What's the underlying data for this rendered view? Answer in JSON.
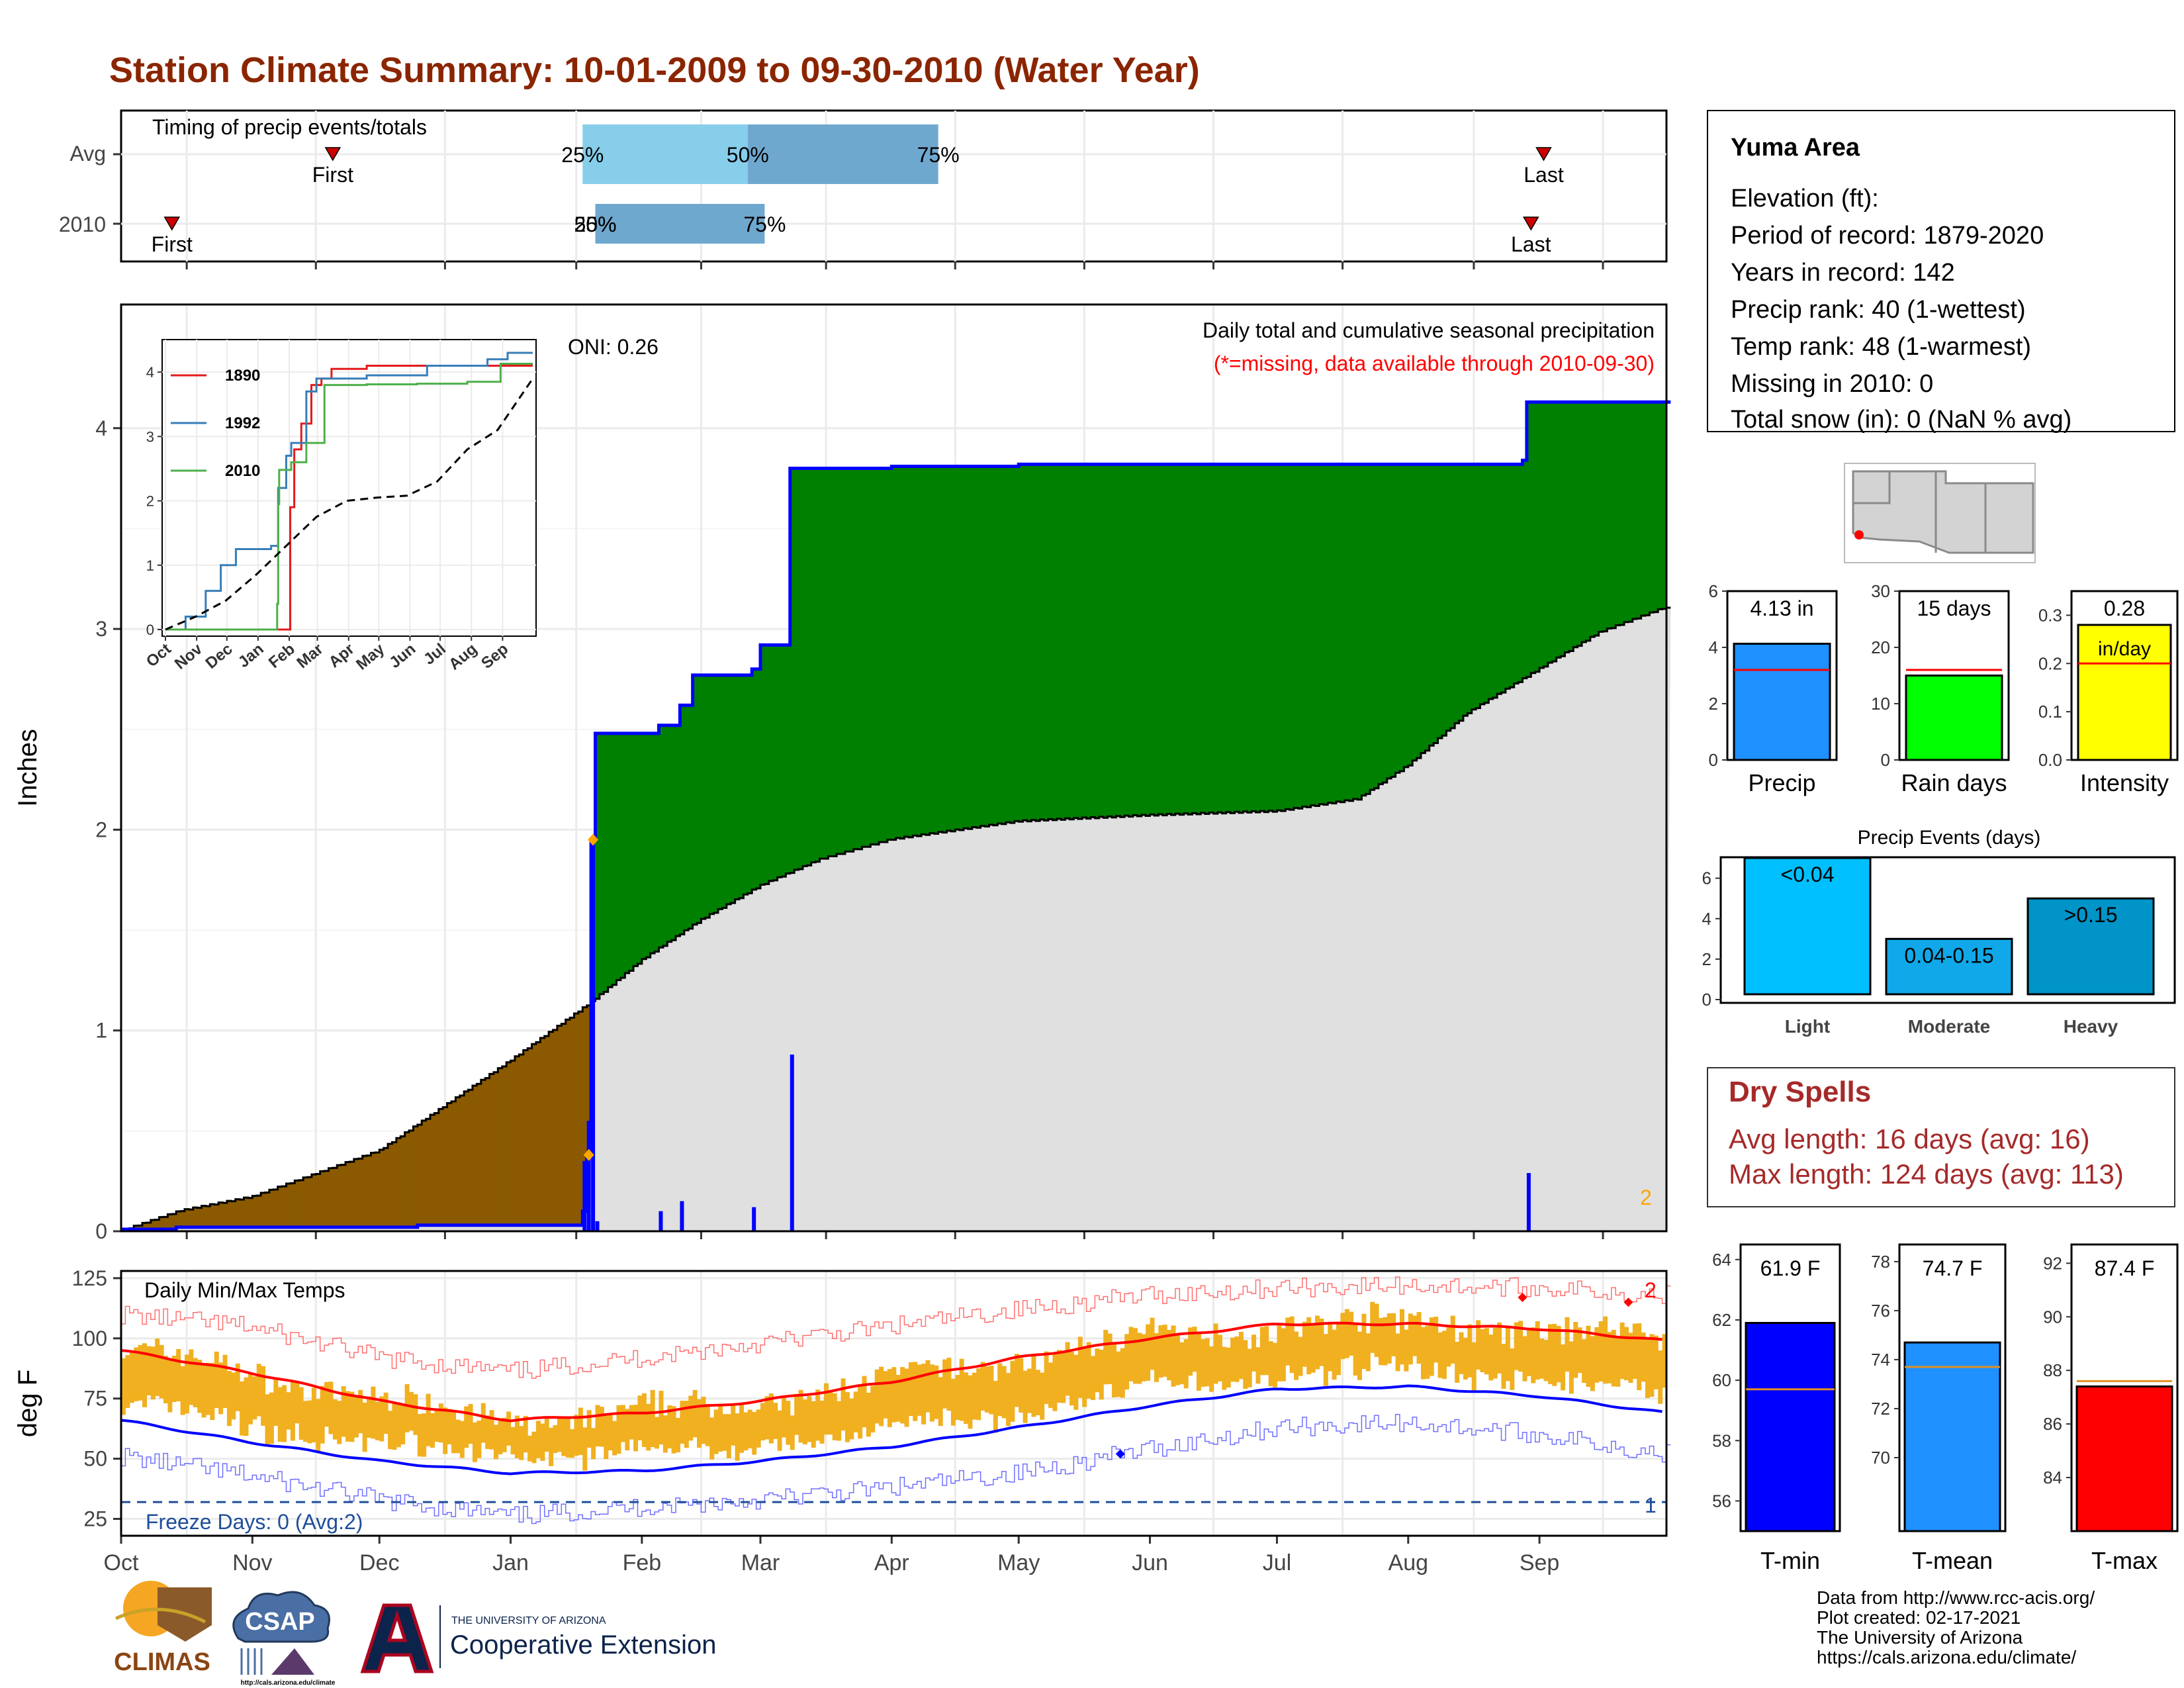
{
  "title": "Station Climate Summary: 10-01-2009 to 09-30-2010 (Water Year)",
  "months": [
    "Oct",
    "Nov",
    "Dec",
    "Jan",
    "Feb",
    "Mar",
    "Apr",
    "May",
    "Jun",
    "Jul",
    "Aug",
    "Sep"
  ],
  "timing": {
    "title": "Timing of precip events/totals",
    "row_labels": [
      "Avg",
      "2010"
    ],
    "first_label": "First",
    "last_label": "Last",
    "avg": {
      "first": "Nov 20",
      "p25": "Jan 18",
      "p50": "Feb 26",
      "p75": "Apr 12",
      "last": "Sep 2"
    },
    "y2010": {
      "first": "Oct 13",
      "p25": "Jan 21",
      "p50": "Jan 21",
      "p75": "Mar 2",
      "last": "Aug 30"
    },
    "pct_labels": [
      "25%",
      "50%",
      "75%"
    ],
    "colors": {
      "p25_p50": "#87ceeb",
      "p50_p75": "#6fa8cf",
      "marker": "#cc0000"
    }
  },
  "precip_panel": {
    "ylabel": "Inches",
    "header": "Daily total and cumulative seasonal precipitation",
    "missing_note": "(*=missing, data available through 2010-09-30)",
    "oni": "ONI: 0.26",
    "missing_count": "2",
    "colors": {
      "above_avg": "#008000",
      "below_avg": "#8b5a00",
      "avg_fill": "#e0e0e0",
      "obs_line": "#0000ff",
      "bars": "#0000ff"
    }
  },
  "inset": {
    "series": [
      {
        "name": "1890",
        "color": "#e41a1c"
      },
      {
        "name": "1992",
        "color": "#377eb8"
      },
      {
        "name": "2010",
        "color": "#4daf4a"
      }
    ],
    "months": [
      "Oct",
      "Nov",
      "Dec",
      "Jan",
      "Feb",
      "Mar",
      "Apr",
      "May",
      "Jun",
      "Jul",
      "Aug",
      "Sep"
    ]
  },
  "temp_panel": {
    "title": "Daily Min/Max Temps",
    "ylabel": "deg F",
    "freeze_label": "Freeze Days: 0 (Avg:2)",
    "count_max": "2",
    "count_min": "1",
    "colors": {
      "range": "#f0b020",
      "avg_max": "#ff0000",
      "avg_min": "#0000ff",
      "rec_max": "#ff7070",
      "rec_min": "#7070ff",
      "freeze": "#1f4e9a"
    }
  },
  "station": {
    "name": "Yuma Area",
    "lines": [
      "Elevation (ft):",
      "Period of record: 1879-2020",
      "Years in record: 142",
      "Precip rank: 40 (1-wettest)",
      "Temp rank: 48 (1-warmest)",
      "Missing in 2010: 0",
      "Total snow (in): 0 (NaN % avg)"
    ]
  },
  "summary_bars": [
    {
      "label": "Precip",
      "value_label": "4.13 in",
      "value": 4.13,
      "avg": 3.2,
      "ymax": 6,
      "ticks": [
        "0",
        "2",
        "4",
        "6"
      ],
      "tick_values": [
        0,
        2,
        4,
        6
      ],
      "color": "#1e90ff"
    },
    {
      "label": "Rain days",
      "value_label": "15 days",
      "value": 15,
      "avg": 16,
      "ymax": 30,
      "ticks": [
        "0",
        "10",
        "20",
        "30"
      ],
      "tick_values": [
        0,
        10,
        20,
        30
      ],
      "color": "#00ff00"
    },
    {
      "label": "Intensity",
      "value_label": "0.28",
      "value_label2": "in/day",
      "value": 0.28,
      "avg": 0.2,
      "ymax": 0.35,
      "ticks": [
        "0.0",
        "0.1",
        "0.2",
        "0.3"
      ],
      "tick_values": [
        0,
        0.1,
        0.2,
        0.3
      ],
      "color": "#ffff00"
    }
  ],
  "events": {
    "title": "Precip Events (days)",
    "ticks": [
      "0",
      "2",
      "4",
      "6"
    ],
    "bars": [
      {
        "label": "Light",
        "value_label": "<0.04",
        "value": 7,
        "color": "#00bfff"
      },
      {
        "label": "Moderate",
        "value_label": "0.04-0.15",
        "value": 3,
        "color": "#10a8e8"
      },
      {
        "label": "Heavy",
        "value_label": ">0.15",
        "value": 5,
        "color": "#0094c8"
      }
    ]
  },
  "dry_spells": {
    "title": "Dry Spells",
    "avg_length": "Avg length: 16 days (avg: 16)",
    "max_length": "Max length: 124 days (avg: 113)"
  },
  "temp_bars": [
    {
      "label": "T-min",
      "value_label": "61.9 F",
      "value": 61.9,
      "avg": 59.7,
      "ymin": 55,
      "ymax": 64.5,
      "ticks": [
        "56",
        "58",
        "60",
        "62",
        "64"
      ],
      "tick_values": [
        56,
        58,
        60,
        62,
        64
      ],
      "color": "#0000ff"
    },
    {
      "label": "T-mean",
      "value_label": "74.7 F",
      "value": 74.7,
      "avg": 73.7,
      "ymin": 67,
      "ymax": 78.7,
      "ticks": [
        "70",
        "72",
        "74",
        "76",
        "78"
      ],
      "tick_values": [
        70,
        72,
        74,
        76,
        78
      ],
      "color": "#1e90ff"
    },
    {
      "label": "T-max",
      "value_label": "87.4 F",
      "value": 87.4,
      "avg": 87.6,
      "ymin": 82,
      "ymax": 92.7,
      "ticks": [
        "84",
        "86",
        "88",
        "90",
        "92"
      ],
      "tick_values": [
        84,
        86,
        88,
        90,
        92
      ],
      "color": "#ff0000"
    }
  ],
  "logos": {
    "climas": "CLIMAS",
    "csap": "CSAP",
    "csap_url": "http://cals.arizona.edu/climate",
    "ua_small": "THE UNIVERSITY OF ARIZONA",
    "ua_big": "Cooperative Extension"
  },
  "credits": [
    "Data from http://www.rcc-acis.org/",
    "Plot created: 02-17-2021",
    "The University of Arizona",
    "https://cals.arizona.edu/climate/"
  ],
  "chart_data": [
    {
      "type": "area",
      "title": "Daily total and cumulative seasonal precipitation",
      "ylabel": "Inches",
      "ylim": [
        0,
        4.55
      ],
      "x_range": [
        "2009-10-01",
        "2010-09-30"
      ],
      "cumulative_2010": [
        {
          "x": "2009-10-01",
          "y": 0.01
        },
        {
          "x": "2009-10-14",
          "y": 0.02
        },
        {
          "x": "2009-12-10",
          "y": 0.03
        },
        {
          "x": "2010-01-18",
          "y": 0.1
        },
        {
          "x": "2010-01-19",
          "y": 0.38
        },
        {
          "x": "2010-01-20",
          "y": 1.95
        },
        {
          "x": "2010-01-21",
          "y": 2.48
        },
        {
          "x": "2010-02-05",
          "y": 2.52
        },
        {
          "x": "2010-02-10",
          "y": 2.62
        },
        {
          "x": "2010-02-13",
          "y": 2.77
        },
        {
          "x": "2010-02-27",
          "y": 2.8
        },
        {
          "x": "2010-03-01",
          "y": 2.92
        },
        {
          "x": "2010-03-08",
          "y": 3.8
        },
        {
          "x": "2010-04-01",
          "y": 3.81
        },
        {
          "x": "2010-05-01",
          "y": 3.82
        },
        {
          "x": "2010-08-28",
          "y": 3.84
        },
        {
          "x": "2010-08-29",
          "y": 4.13
        },
        {
          "x": "2010-09-30",
          "y": 4.13
        }
      ],
      "cumulative_avg": [
        {
          "x": "2009-10-01",
          "y": 0.0
        },
        {
          "x": "2009-10-15",
          "y": 0.1
        },
        {
          "x": "2009-11-01",
          "y": 0.17
        },
        {
          "x": "2009-12-01",
          "y": 0.4
        },
        {
          "x": "2010-01-01",
          "y": 0.85
        },
        {
          "x": "2010-01-20",
          "y": 1.14
        },
        {
          "x": "2010-02-01",
          "y": 1.35
        },
        {
          "x": "2010-02-15",
          "y": 1.55
        },
        {
          "x": "2010-03-01",
          "y": 1.72
        },
        {
          "x": "2010-03-15",
          "y": 1.85
        },
        {
          "x": "2010-04-01",
          "y": 1.95
        },
        {
          "x": "2010-05-01",
          "y": 2.04
        },
        {
          "x": "2010-06-01",
          "y": 2.07
        },
        {
          "x": "2010-07-01",
          "y": 2.09
        },
        {
          "x": "2010-07-20",
          "y": 2.15
        },
        {
          "x": "2010-08-01",
          "y": 2.32
        },
        {
          "x": "2010-08-15",
          "y": 2.58
        },
        {
          "x": "2010-09-01",
          "y": 2.8
        },
        {
          "x": "2010-09-15",
          "y": 2.98
        },
        {
          "x": "2010-09-30",
          "y": 3.1
        }
      ],
      "daily_bars": [
        {
          "x": "2010-01-18",
          "y": 0.35
        },
        {
          "x": "2010-01-19",
          "y": 0.55
        },
        {
          "x": "2010-01-20",
          "y": 1.95
        },
        {
          "x": "2010-01-21",
          "y": 0.05
        },
        {
          "x": "2010-02-05",
          "y": 0.1
        },
        {
          "x": "2010-02-10",
          "y": 0.15
        },
        {
          "x": "2010-02-27",
          "y": 0.12
        },
        {
          "x": "2010-03-08",
          "y": 0.88
        },
        {
          "x": "2010-08-29",
          "y": 0.29
        }
      ]
    },
    {
      "type": "line",
      "title": "",
      "ylim": [
        0,
        4.3
      ],
      "yticks": [
        0,
        1,
        2,
        3,
        4
      ],
      "series": [
        {
          "name": "1890",
          "values": [
            [
              0,
              0
            ],
            [
              120,
              0
            ],
            [
              124,
              1.9
            ],
            [
              128,
              2.8
            ],
            [
              135,
              3.2
            ],
            [
              145,
              3.8
            ],
            [
              155,
              3.9
            ],
            [
              165,
              4.05
            ],
            [
              200,
              4.1
            ],
            [
              300,
              4.1
            ],
            [
              365,
              4.1
            ]
          ]
        },
        {
          "name": "1992",
          "values": [
            [
              0,
              0
            ],
            [
              20,
              0.2
            ],
            [
              40,
              0.6
            ],
            [
              55,
              1.0
            ],
            [
              70,
              1.25
            ],
            [
              105,
              1.3
            ],
            [
              112,
              2.2
            ],
            [
              120,
              2.7
            ],
            [
              125,
              2.9
            ],
            [
              140,
              3.7
            ],
            [
              150,
              3.9
            ],
            [
              200,
              3.95
            ],
            [
              260,
              4.1
            ],
            [
              320,
              4.2
            ],
            [
              340,
              4.3
            ],
            [
              365,
              4.3
            ]
          ]
        },
        {
          "name": "2010",
          "values": [
            [
              0,
              0
            ],
            [
              110,
              0
            ],
            [
              111,
              0.4
            ],
            [
              112,
              1.95
            ],
            [
              113,
              2.48
            ],
            [
              125,
              2.6
            ],
            [
              140,
              2.9
            ],
            [
              158,
              3.8
            ],
            [
              200,
              3.81
            ],
            [
              250,
              3.82
            ],
            [
              300,
              3.85
            ],
            [
              332,
              3.85
            ],
            [
              333,
              4.13
            ],
            [
              365,
              4.13
            ]
          ]
        },
        {
          "name": "avg",
          "values": [
            [
              0,
              0
            ],
            [
              30,
              0.2
            ],
            [
              60,
              0.45
            ],
            [
              90,
              0.85
            ],
            [
              120,
              1.3
            ],
            [
              150,
              1.75
            ],
            [
              180,
              2.0
            ],
            [
              210,
              2.05
            ],
            [
              240,
              2.08
            ],
            [
              270,
              2.3
            ],
            [
              300,
              2.8
            ],
            [
              330,
              3.1
            ],
            [
              365,
              3.9
            ]
          ]
        }
      ]
    },
    {
      "type": "line",
      "title": "Daily Min/Max Temps",
      "ylabel": "deg F",
      "ylim": [
        18,
        128
      ],
      "yticks": [
        25,
        50,
        75,
        100,
        125
      ],
      "avg_max": [
        [
          0,
          95
        ],
        [
          30,
          86
        ],
        [
          61,
          74
        ],
        [
          92,
          66
        ],
        [
          123,
          69
        ],
        [
          151,
          74
        ],
        [
          182,
          82
        ],
        [
          212,
          92
        ],
        [
          243,
          100
        ],
        [
          273,
          106
        ],
        [
          304,
          106
        ],
        [
          335,
          104
        ],
        [
          365,
          99
        ]
      ],
      "avg_min": [
        [
          0,
          66
        ],
        [
          30,
          57
        ],
        [
          61,
          49
        ],
        [
          92,
          44
        ],
        [
          123,
          45
        ],
        [
          151,
          49
        ],
        [
          182,
          55
        ],
        [
          212,
          63
        ],
        [
          243,
          72
        ],
        [
          273,
          79
        ],
        [
          304,
          80
        ],
        [
          335,
          76
        ],
        [
          365,
          69
        ]
      ],
      "record_max": [
        [
          0,
          110
        ],
        [
          30,
          105
        ],
        [
          61,
          92
        ],
        [
          92,
          86
        ],
        [
          123,
          92
        ],
        [
          151,
          98
        ],
        [
          182,
          105
        ],
        [
          212,
          112
        ],
        [
          243,
          118
        ],
        [
          273,
          121
        ],
        [
          304,
          122
        ],
        [
          335,
          121
        ],
        [
          365,
          118
        ]
      ],
      "record_min": [
        [
          0,
          51
        ],
        [
          30,
          43
        ],
        [
          61,
          33
        ],
        [
          92,
          26
        ],
        [
          123,
          30
        ],
        [
          151,
          33
        ],
        [
          182,
          38
        ],
        [
          212,
          44
        ],
        [
          243,
          54
        ],
        [
          273,
          63
        ],
        [
          304,
          65
        ],
        [
          335,
          60
        ],
        [
          365,
          52
        ]
      ],
      "freeze_threshold": 32
    }
  ]
}
